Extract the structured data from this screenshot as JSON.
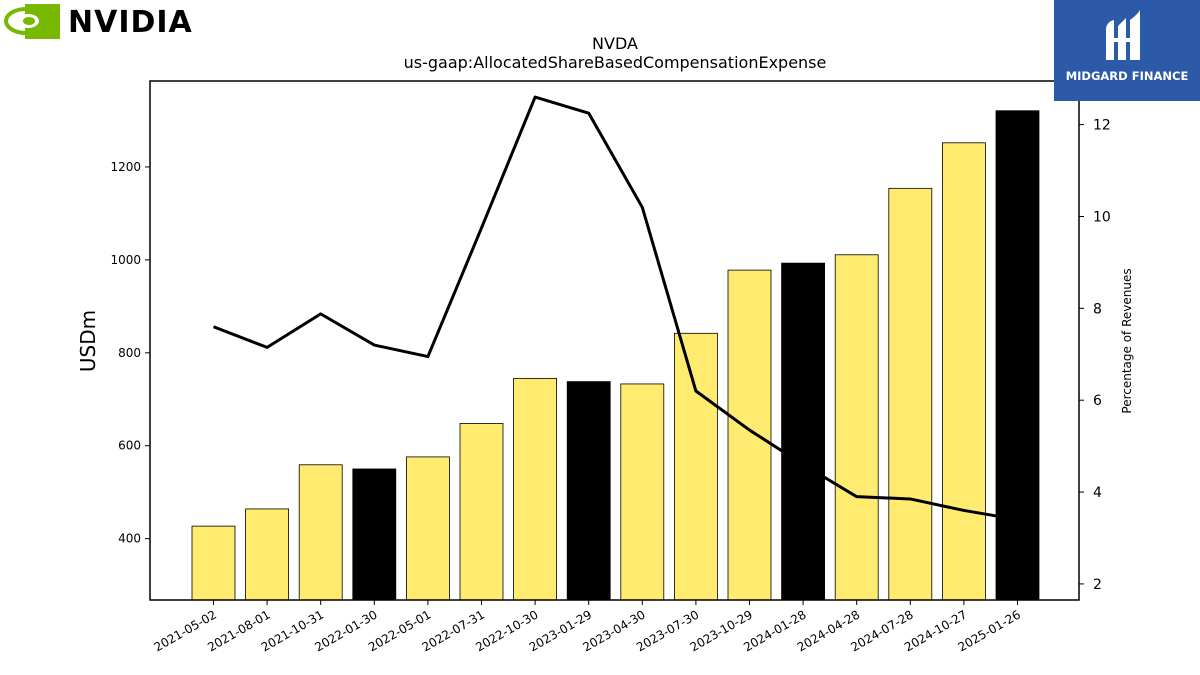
{
  "logos": {
    "left_brand": "NVIDIA",
    "right_brand": "MIDGARD FINANCE",
    "left_color": "#76b900",
    "right_color": "#2c5aa8"
  },
  "chart_data": {
    "type": "bar",
    "title": "NVDA",
    "subtitle": "us-gaap:AllocatedShareBasedCompensationExpense",
    "ylabel": "USDm",
    "y2label": "Percentage of Revenues",
    "ylim": [
      268,
      1385
    ],
    "y2lim": [
      1.65,
      12.95
    ],
    "yticks": [
      400,
      600,
      800,
      1000,
      1200
    ],
    "y2ticks": [
      2,
      4,
      6,
      8,
      10,
      12
    ],
    "categories": [
      "2021-05-02",
      "2021-08-01",
      "2021-10-31",
      "2022-01-30",
      "2022-05-01",
      "2022-07-31",
      "2022-10-30",
      "2023-01-29",
      "2023-04-30",
      "2023-07-30",
      "2023-10-29",
      "2024-01-28",
      "2024-04-28",
      "2024-07-28",
      "2024-10-27",
      "2025-01-26"
    ],
    "values": [
      427,
      464,
      559,
      550,
      576,
      648,
      745,
      738,
      733,
      842,
      978,
      993,
      1011,
      1154,
      1252,
      1321
    ],
    "bar_colors": [
      "#ffeb70",
      "#ffeb70",
      "#ffeb70",
      "#000000",
      "#ffeb70",
      "#ffeb70",
      "#ffeb70",
      "#000000",
      "#ffeb70",
      "#ffeb70",
      "#ffeb70",
      "#000000",
      "#ffeb70",
      "#ffeb70",
      "#ffeb70",
      "#000000"
    ],
    "line_values": [
      7.6,
      7.15,
      7.88,
      7.2,
      6.95,
      9.75,
      12.6,
      12.25,
      10.2,
      6.2,
      5.35,
      4.6,
      3.9,
      3.85,
      3.6,
      3.4
    ],
    "line_color": "#000000",
    "grid": false
  }
}
